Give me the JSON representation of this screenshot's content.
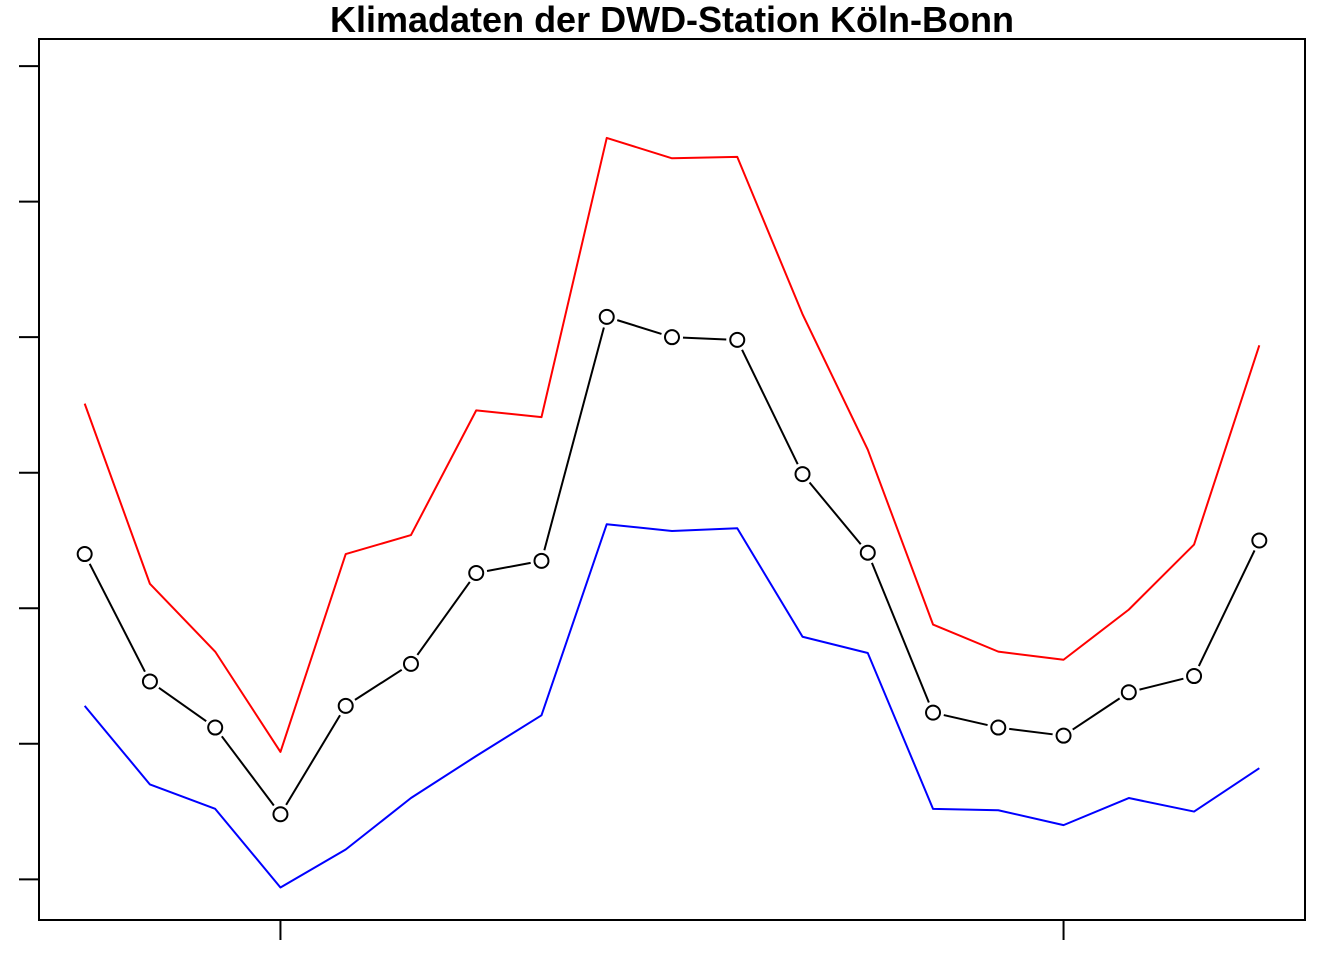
{
  "chart_data": {
    "type": "line",
    "title": "Klimadaten der DWD-Station Köln-Bonn",
    "xlabel": "",
    "ylabel": "",
    "x": [
      1,
      2,
      3,
      4,
      5,
      6,
      7,
      8,
      9,
      10,
      11,
      12,
      13,
      14,
      15,
      16,
      17,
      18,
      19
    ],
    "ylim": [
      -0.3,
      6.2
    ],
    "xlim": [
      0.3,
      19.7
    ],
    "y_ticks": [
      0,
      1,
      2,
      3,
      4,
      5,
      6
    ],
    "x_ticks": [
      4,
      16
    ],
    "grid": false,
    "legend": "none",
    "series": [
      {
        "color": "#ff0000",
        "markers": false,
        "values": [
          3.51,
          2.18,
          1.68,
          0.94,
          2.4,
          2.54,
          3.46,
          3.41,
          5.47,
          5.32,
          5.33,
          4.17,
          3.17,
          1.88,
          1.68,
          1.62,
          1.99,
          2.47,
          3.94
        ]
      },
      {
        "color": "#000000",
        "markers": true,
        "values": [
          2.4,
          1.46,
          1.12,
          0.48,
          1.28,
          1.59,
          2.26,
          2.35,
          4.15,
          4.0,
          3.98,
          2.99,
          2.41,
          1.23,
          1.12,
          1.06,
          1.38,
          1.5,
          2.5
        ]
      },
      {
        "color": "#0000ff",
        "markers": false,
        "values": [
          1.28,
          0.7,
          0.52,
          -0.06,
          0.22,
          0.6,
          0.91,
          1.21,
          2.62,
          2.57,
          2.59,
          1.79,
          1.67,
          0.52,
          0.51,
          0.4,
          0.6,
          0.5,
          0.82
        ]
      }
    ]
  }
}
